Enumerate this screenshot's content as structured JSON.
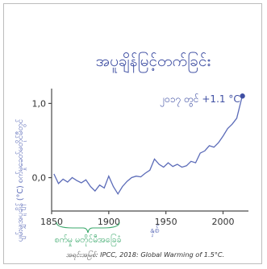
{
  "chart_data": {
    "type": "line",
    "title": "အပူချိန်မြင့်တက်ခြင်း",
    "ylabel": "ပျမ်းမျှအပူချိန် (°C) စက်မှုခေတ်မတိုင်မီတွင်",
    "xlabel": "နှစ်",
    "x_ticks": [
      "1850",
      "1900",
      "1950",
      "2000"
    ],
    "y_ticks": [
      "0,0",
      "1,0"
    ],
    "xlim": [
      1850,
      2018
    ],
    "ylim": [
      -0.45,
      1.2
    ],
    "annotation": "၂၀၁၇ တွင် +1.1 °C",
    "baseline_label": "စက်မှု မတိုင်မီအခြေခံ",
    "source": "အရင်းအမြစ်: IPCC, 2018: Global Warming of 1.5°C.",
    "series": [
      {
        "x": [
          1852,
          1856,
          1860,
          1864,
          1868,
          1872,
          1876,
          1880,
          1884,
          1888,
          1892,
          1896,
          1900,
          1904,
          1908,
          1912,
          1916,
          1920,
          1924,
          1928,
          1932,
          1936,
          1940,
          1944,
          1948,
          1952,
          1956,
          1960,
          1964,
          1968,
          1972,
          1976,
          1980,
          1984,
          1988,
          1992,
          1996,
          2000,
          2004,
          2008,
          2012,
          2016,
          2017
        ],
        "y": [
          0.05,
          -0.08,
          -0.02,
          -0.06,
          0.0,
          -0.04,
          -0.07,
          -0.03,
          -0.12,
          -0.18,
          -0.1,
          -0.14,
          0.02,
          -0.12,
          -0.22,
          -0.12,
          -0.05,
          0.0,
          0.02,
          0.01,
          0.06,
          0.1,
          0.25,
          0.18,
          0.14,
          0.2,
          0.15,
          0.18,
          0.14,
          0.16,
          0.22,
          0.2,
          0.33,
          0.36,
          0.43,
          0.41,
          0.47,
          0.56,
          0.66,
          0.72,
          0.8,
          1.05,
          1.1
        ]
      }
    ],
    "colors": {
      "line": "#5b6bb8",
      "axis": "#4a4a4a",
      "title": "#3f4fa3",
      "baseline": "#3aa86b",
      "text": "#333333"
    }
  }
}
